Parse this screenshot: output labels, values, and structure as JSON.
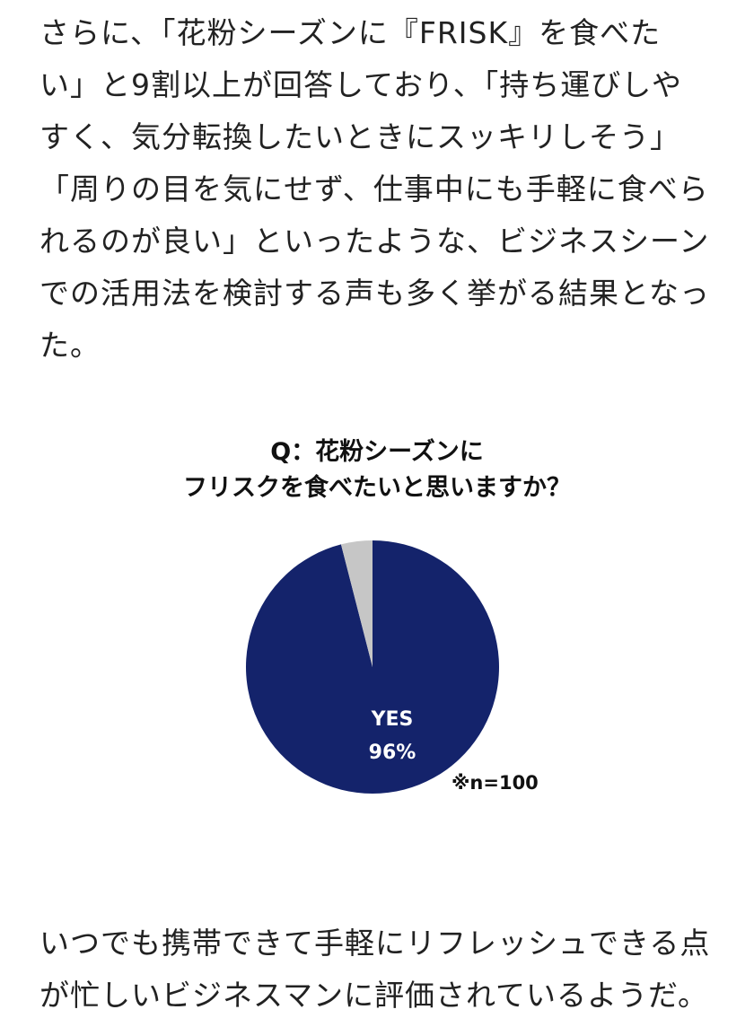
{
  "paragraph1": {
    "lines": [
      "さらに、「花粉シーズンに『FRISK』を食べた",
      "い」と9割以上が回答しており、「持ち運びしや",
      "すく、気分転換したいときにスッキリしそう」",
      "「周りの目を気にせず、仕事中にも手軽に食べら",
      "れるのが良い」といったような、ビジネスシーン",
      "での活用法を検討する声も多く挙がる結果となっ",
      "た。"
    ]
  },
  "chart_data": {
    "type": "pie",
    "title_lines": [
      "Q：花粉シーズンに",
      "フリスクを食べたいと思いますか？"
    ],
    "slices": [
      {
        "label": "YES",
        "value": 96,
        "value_label": "96%",
        "color": "#14236b"
      },
      {
        "label": "",
        "value": 4,
        "color": "#c6c6c6"
      }
    ],
    "note": "※n=100"
  },
  "paragraph2": {
    "lines": [
      "いつでも携帯できて手軽にリフレッシュできる点",
      "が忙しいビジネスマンに評価されているようだ。"
    ]
  }
}
